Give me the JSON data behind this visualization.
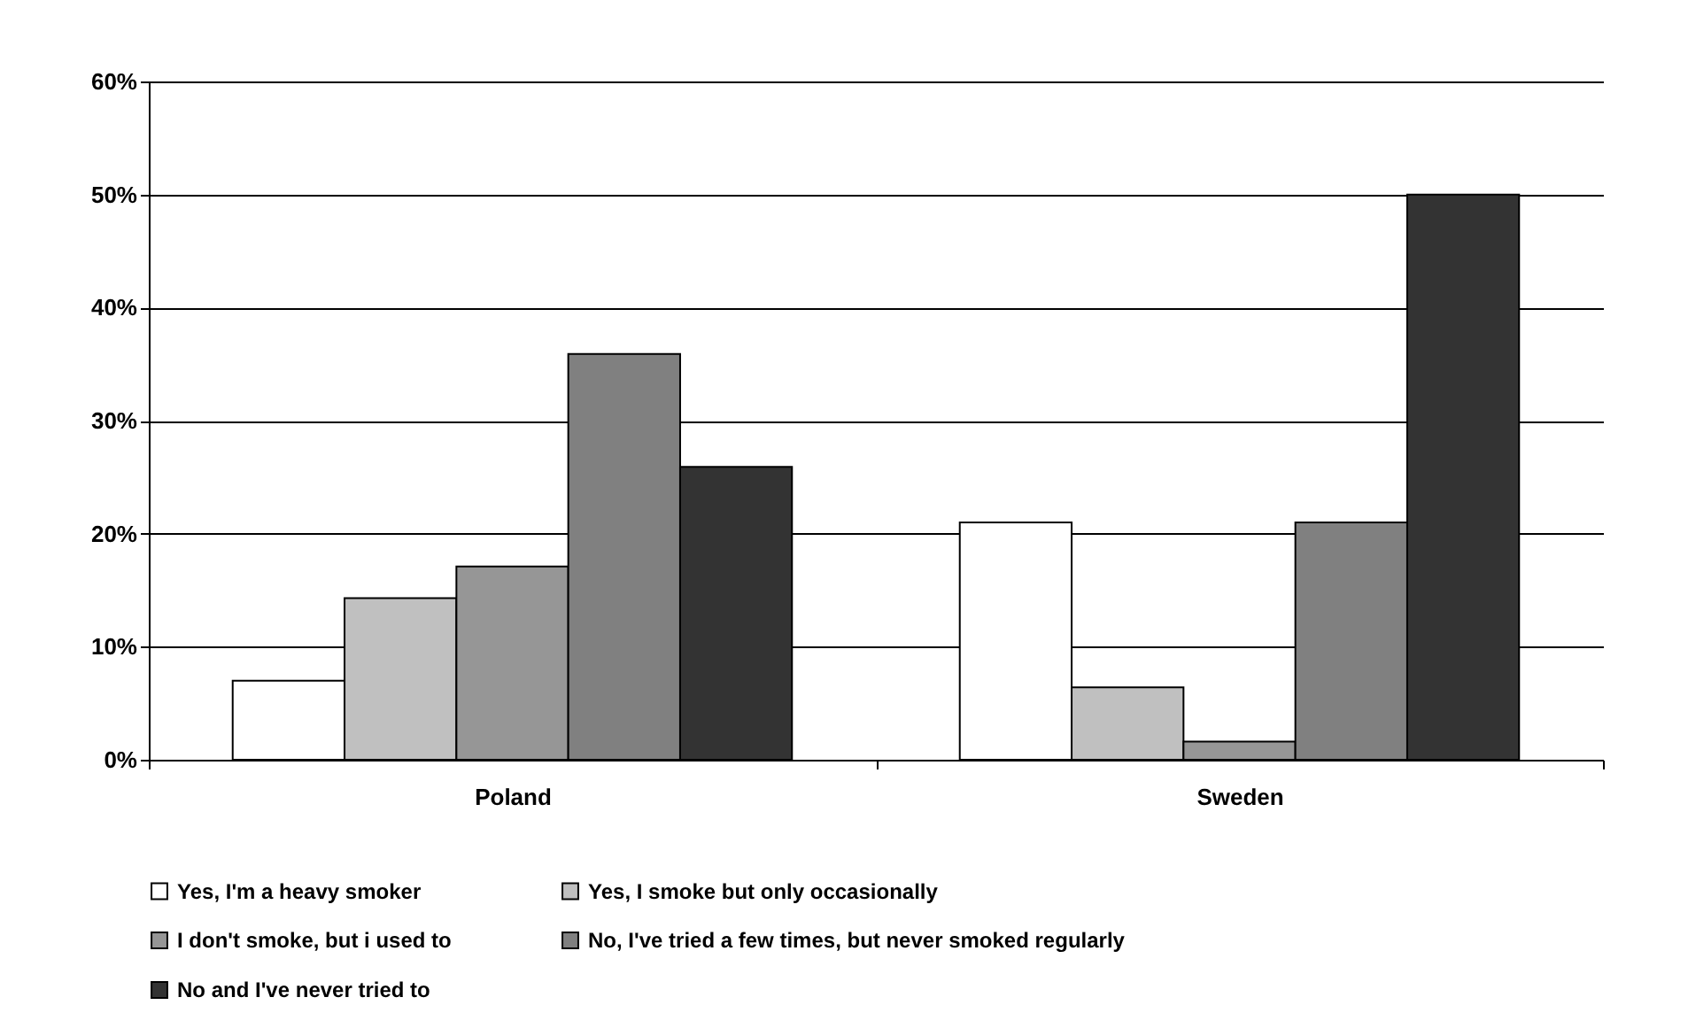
{
  "chart_data": {
    "type": "bar",
    "categories": [
      "Poland",
      "Sweden"
    ],
    "series": [
      {
        "name": "Yes, I'm a heavy smoker",
        "color": "#ffffff",
        "values": [
          7,
          21
        ]
      },
      {
        "name": "Yes, I smoke but only occasionally",
        "color": "#c0c0c0",
        "values": [
          14.3,
          6.4
        ]
      },
      {
        "name": "I don't smoke, but i used to",
        "color": "#969696",
        "values": [
          17.1,
          1.6
        ]
      },
      {
        "name": "No, I've tried a few times, but never smoked regularly",
        "color": "#808080",
        "values": [
          35.9,
          21
        ]
      },
      {
        "name": "No and I've never tried to",
        "color": "#333333",
        "values": [
          25.9,
          50
        ]
      }
    ],
    "ylim": [
      0,
      60
    ],
    "yticks": [
      {
        "value": 0,
        "label": "0%"
      },
      {
        "value": 10,
        "label": "10%"
      },
      {
        "value": 20,
        "label": "20%"
      },
      {
        "value": 30,
        "label": "30%"
      },
      {
        "value": 40,
        "label": "40%"
      },
      {
        "value": 50,
        "label": "50%"
      },
      {
        "value": 60,
        "label": "60%"
      }
    ],
    "grid": "y",
    "legend": "bottom"
  }
}
